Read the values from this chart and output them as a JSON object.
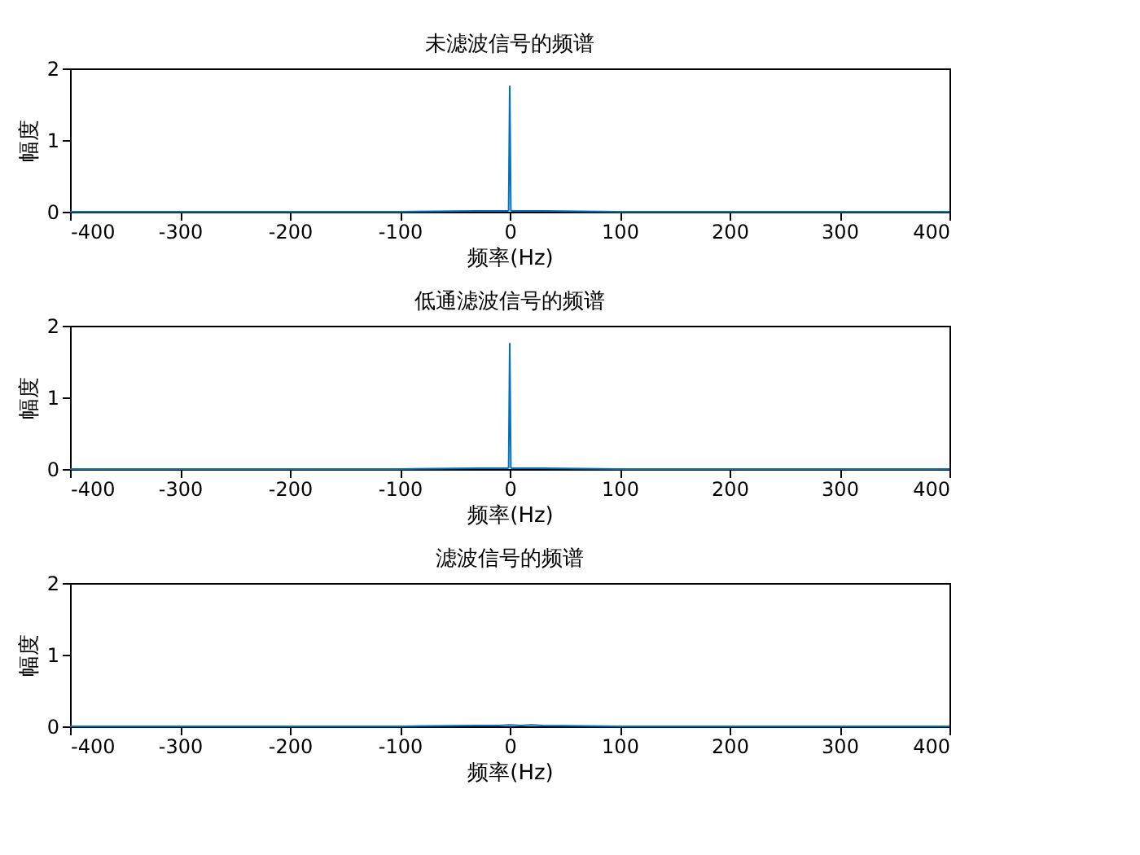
{
  "chart_data": [
    {
      "type": "line",
      "title": "未滤波信号的频谱",
      "xlabel": "频率(Hz)",
      "ylabel": "幅度",
      "xlim": [
        -400,
        400
      ],
      "xticks": [
        -400,
        -300,
        -200,
        -100,
        0,
        100,
        200,
        300,
        400
      ],
      "ylim": [
        0,
        2
      ],
      "yticks": [
        0,
        1,
        2
      ],
      "grid": false,
      "series": [
        {
          "color": "#0072bd",
          "x": [
            -400,
            -100,
            -30,
            -2,
            -1,
            0,
            1,
            2,
            30,
            100,
            400
          ],
          "values": [
            0,
            0,
            0.01,
            0.01,
            0.02,
            1.75,
            0.02,
            0.01,
            0.01,
            0,
            0
          ]
        }
      ]
    },
    {
      "type": "line",
      "title": "低通滤波信号的频谱",
      "xlabel": "频率(Hz)",
      "ylabel": "幅度",
      "xlim": [
        -400,
        400
      ],
      "xticks": [
        -400,
        -300,
        -200,
        -100,
        0,
        100,
        200,
        300,
        400
      ],
      "ylim": [
        0,
        2
      ],
      "yticks": [
        0,
        1,
        2
      ],
      "grid": false,
      "series": [
        {
          "color": "#0072bd",
          "x": [
            -400,
            -100,
            -30,
            -2,
            -1,
            0,
            1,
            2,
            30,
            100,
            400
          ],
          "values": [
            0,
            0,
            0.01,
            0.01,
            0.02,
            1.75,
            0.02,
            0.01,
            0.01,
            0,
            0
          ]
        }
      ]
    },
    {
      "type": "line",
      "title": "滤波信号的频谱",
      "xlabel": "频率(Hz)",
      "ylabel": "幅度",
      "xlim": [
        -400,
        400
      ],
      "xticks": [
        -400,
        -300,
        -200,
        -100,
        0,
        100,
        200,
        300,
        400
      ],
      "ylim": [
        0,
        2
      ],
      "yticks": [
        0,
        1,
        2
      ],
      "grid": false,
      "series": [
        {
          "color": "#0072bd",
          "x": [
            -400,
            -100,
            -30,
            -10,
            0,
            10,
            20,
            30,
            100,
            400
          ],
          "values": [
            0,
            0,
            0.01,
            0.01,
            0.02,
            0.01,
            0.02,
            0.01,
            0,
            0
          ]
        }
      ]
    }
  ]
}
